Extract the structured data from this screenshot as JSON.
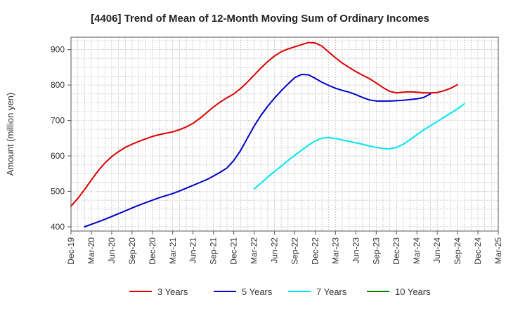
{
  "chart_data": {
    "type": "line",
    "title": "[4406]  Trend of Mean of 12-Month Moving Sum of Ordinary Incomes",
    "xlabel": "",
    "ylabel": "Amount (million yen)",
    "ylim": [
      388,
      935
    ],
    "yticks": [
      400,
      500,
      600,
      700,
      800,
      900
    ],
    "x_tick_labels": [
      "Dec-19",
      "Mar-20",
      "Jun-20",
      "Sep-20",
      "Dec-20",
      "Mar-21",
      "Jun-21",
      "Sep-21",
      "Dec-21",
      "Mar-22",
      "Jun-22",
      "Sep-22",
      "Dec-22",
      "Mar-23",
      "Jun-23",
      "Sep-23",
      "Dec-23",
      "Mar-24",
      "Jun-24",
      "Sep-24",
      "Dec-24",
      "Mar-25"
    ],
    "x_start": "Dec-19",
    "x_months": 63,
    "grid": true,
    "legend_position": "bottom",
    "series": [
      {
        "name": "3 Years",
        "color": "#dd0000",
        "start_month": 0,
        "values": [
          458,
          480,
          505,
          532,
          558,
          580,
          598,
          612,
          624,
          633,
          641,
          648,
          655,
          660,
          664,
          668,
          674,
          682,
          692,
          706,
          722,
          738,
          752,
          764,
          775,
          790,
          808,
          828,
          848,
          866,
          882,
          894,
          902,
          908,
          914,
          920,
          919,
          910,
          893,
          877,
          862,
          850,
          838,
          828,
          818,
          806,
          793,
          782,
          778,
          780,
          781,
          780,
          778,
          778,
          779,
          784,
          791,
          801
        ]
      },
      {
        "name": "5 Years",
        "color": "#0000cc",
        "start_month": 2,
        "values": [
          400,
          407,
          414,
          421,
          429,
          437,
          445,
          453,
          461,
          468,
          475,
          482,
          488,
          494,
          501,
          509,
          517,
          525,
          533,
          543,
          554,
          566,
          587,
          615,
          650,
          684,
          714,
          740,
          763,
          784,
          803,
          821,
          830,
          829,
          819,
          808,
          799,
          791,
          785,
          780,
          773,
          765,
          758,
          755,
          755,
          755,
          756,
          757,
          759,
          761,
          765,
          775
        ]
      },
      {
        "name": "7 Years",
        "color": "#00e5ee",
        "start_month": 27,
        "values": [
          507,
          523,
          540,
          556,
          571,
          587,
          602,
          616,
          630,
          642,
          650,
          652,
          649,
          645,
          641,
          637,
          633,
          628,
          624,
          621,
          620,
          624,
          633,
          646,
          660,
          673,
          685,
          697,
          709,
          721,
          733,
          747
        ]
      },
      {
        "name": "10 Years",
        "color": "#008000",
        "start_month": 0,
        "values": []
      }
    ]
  }
}
